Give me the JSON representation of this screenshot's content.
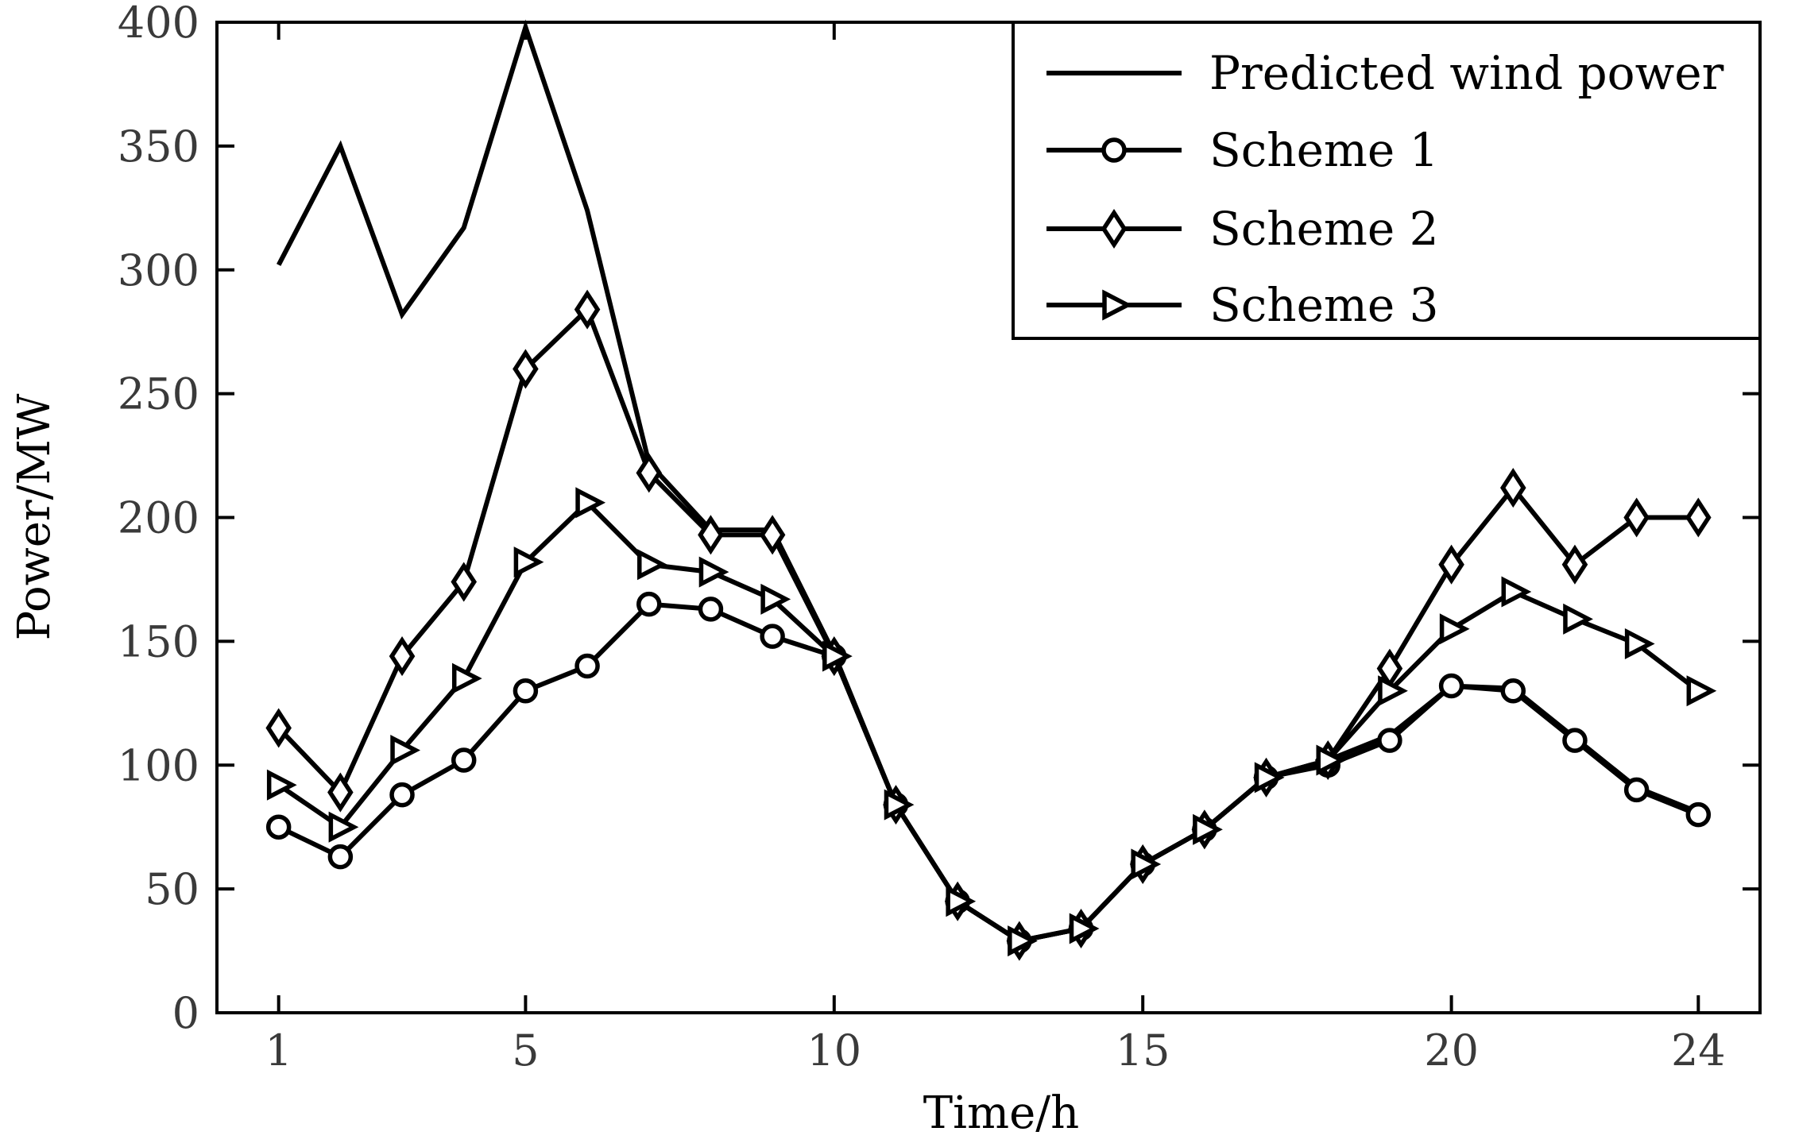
{
  "chart_data": {
    "type": "line",
    "title": "",
    "xlabel": "Time/h",
    "ylabel": "Power/MW",
    "xlim": [
      0,
      25
    ],
    "ylim": [
      0,
      400
    ],
    "xticks": [
      1,
      5,
      10,
      15,
      20,
      24
    ],
    "yticks": [
      0,
      50,
      100,
      150,
      200,
      250,
      300,
      350,
      400
    ],
    "legend_position": "top-right",
    "x": [
      1,
      2,
      3,
      4,
      5,
      6,
      7,
      8,
      9,
      10,
      11,
      12,
      13,
      14,
      15,
      16,
      17,
      18,
      19,
      20,
      21,
      22,
      23,
      24
    ],
    "series": [
      {
        "name": "Predicted wind power",
        "marker": "none",
        "values": [
          302,
          350,
          282,
          317,
          398,
          324,
          222,
          195,
          195,
          145,
          84,
          45,
          29,
          34,
          60,
          74,
          95,
          102,
          112,
          132,
          131,
          111,
          91,
          81
        ]
      },
      {
        "name": "Scheme 1",
        "marker": "circle",
        "values": [
          75,
          63,
          88,
          102,
          130,
          140,
          165,
          163,
          152,
          144,
          84,
          45,
          29,
          34,
          60,
          74,
          95,
          100,
          110,
          132,
          130,
          110,
          90,
          80
        ]
      },
      {
        "name": "Scheme 2",
        "marker": "diamond",
        "values": [
          115,
          89,
          144,
          174,
          260,
          284,
          218,
          193,
          193,
          144,
          84,
          45,
          29,
          34,
          60,
          74,
          95,
          102,
          139,
          181,
          212,
          181,
          200,
          200
        ]
      },
      {
        "name": "Scheme 3",
        "marker": "triangle-right",
        "values": [
          92,
          75,
          106,
          135,
          182,
          206,
          181,
          178,
          167,
          144,
          84,
          45,
          29,
          34,
          60,
          74,
          95,
          102,
          130,
          155,
          170,
          159,
          149,
          130
        ]
      }
    ]
  }
}
